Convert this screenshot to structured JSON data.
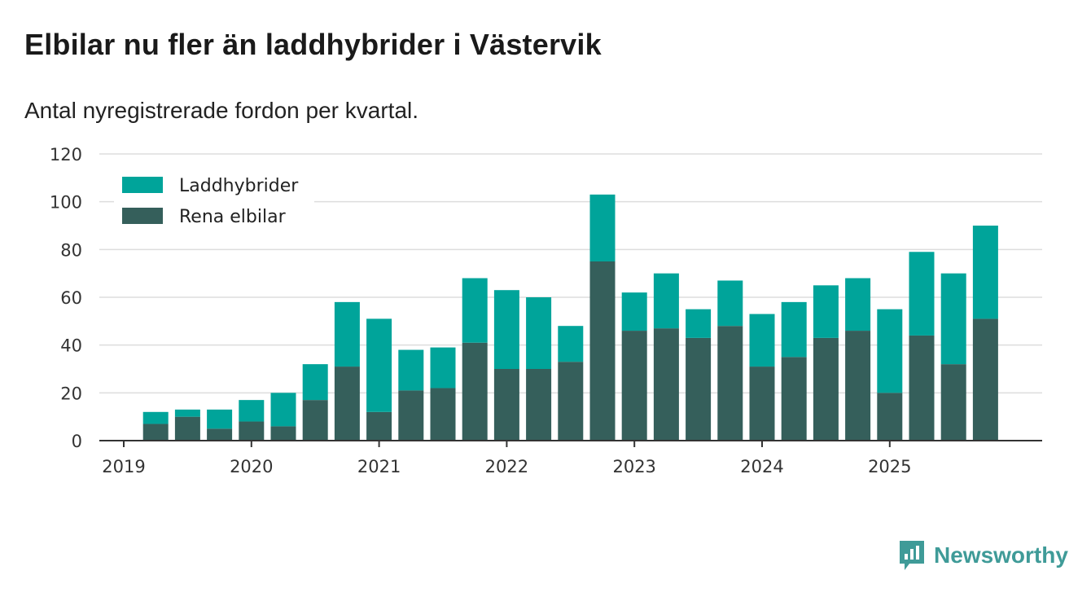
{
  "title": "Elbilar nu fler än laddhybrider i Västervik",
  "subtitle": "Antal nyregistrerade fordon per kvartal.",
  "brand": "Newsworthy",
  "colors": {
    "laddhybrider": "#00a49a",
    "rena_elbilar": "#355f5b",
    "grid": "#dddddd",
    "axis": "#333333",
    "brand": "#3f9b98"
  },
  "chart_data": {
    "type": "bar",
    "stacked": true,
    "title": "Elbilar nu fler än laddhybrider i Västervik",
    "subtitle": "Antal nyregistrerade fordon per kvartal.",
    "xlabel": "",
    "ylabel": "",
    "ylim": [
      0,
      120
    ],
    "yticks": [
      0,
      20,
      40,
      60,
      80,
      100,
      120
    ],
    "xtick_labels": [
      "2019",
      "2020",
      "2021",
      "2022",
      "2023",
      "2024",
      "2025"
    ],
    "legend_position": "top-left",
    "categories": [
      "2019 Q1",
      "2019 Q2",
      "2019 Q3",
      "2019 Q4",
      "2020 Q1",
      "2020 Q2",
      "2020 Q3",
      "2020 Q4",
      "2021 Q1",
      "2021 Q2",
      "2021 Q3",
      "2021 Q4",
      "2022 Q1",
      "2022 Q2",
      "2022 Q3",
      "2022 Q4",
      "2023 Q1",
      "2023 Q2",
      "2023 Q3",
      "2023 Q4",
      "2024 Q1",
      "2024 Q2",
      "2024 Q3",
      "2024 Q4",
      "2025 Q1",
      "2025 Q2",
      "2025 Q3",
      "2025 Q4"
    ],
    "series": [
      {
        "name": "Rena elbilar",
        "values": [
          0,
          7,
          10,
          5,
          8,
          6,
          17,
          31,
          12,
          21,
          22,
          41,
          30,
          30,
          33,
          75,
          46,
          47,
          43,
          48,
          31,
          35,
          43,
          46,
          20,
          44,
          32,
          51
        ]
      },
      {
        "name": "Laddhybrider",
        "values": [
          0,
          5,
          3,
          8,
          9,
          14,
          15,
          27,
          39,
          17,
          17,
          27,
          33,
          30,
          15,
          28,
          16,
          23,
          12,
          19,
          22,
          23,
          22,
          22,
          35,
          35,
          38,
          39
        ]
      }
    ]
  }
}
